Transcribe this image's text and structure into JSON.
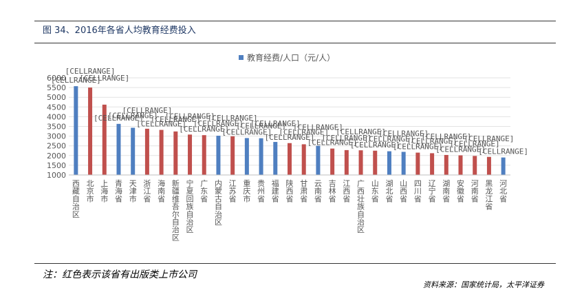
{
  "figure": {
    "title": "图 34、2016年各省人均教育经费投入",
    "note": "注：红色表示该省有出版类上市公司",
    "source": "资料来源：国家统计局，太平洋证券"
  },
  "chart_data": {
    "type": "bar",
    "title": "",
    "legend": {
      "label": "教育经费/人口（元/人）",
      "position": "top"
    },
    "ylim": [
      1000,
      6000
    ],
    "yticks": [
      1000,
      1500,
      2000,
      2500,
      3000,
      3500,
      4000,
      4500,
      5000,
      5500,
      6000
    ],
    "grid": true,
    "data_label_text": "[CELLRANGE]",
    "colors": {
      "default": "#4f7fc0",
      "highlight": "#c0504d"
    },
    "categories": [
      "西藏自治区",
      "北京市",
      "上海市",
      "青海省",
      "天津市",
      "浙江省",
      "海南省",
      "新疆维吾尔自治区",
      "宁夏回族自治区",
      "广东省",
      "内蒙古自治区",
      "江苏省",
      "重庆市",
      "贵州省",
      "福建省",
      "陕西省",
      "甘肃省",
      "云南省",
      "吉林省",
      "江西省",
      "广西壮族自治区",
      "山东省",
      "湖北省",
      "山西省",
      "四川省",
      "辽宁省",
      "湖南省",
      "安徽省",
      "河南省",
      "黑龙江省",
      "河北省"
    ],
    "values": [
      5570,
      5500,
      4620,
      3630,
      3430,
      3380,
      3320,
      3240,
      3080,
      3050,
      3020,
      2990,
      2900,
      2890,
      2700,
      2640,
      2580,
      2500,
      2360,
      2280,
      2270,
      2250,
      2220,
      2190,
      2150,
      2120,
      2030,
      2010,
      1980,
      1930,
      1900
    ],
    "highlight": [
      false,
      true,
      true,
      false,
      false,
      true,
      true,
      true,
      true,
      true,
      false,
      true,
      false,
      false,
      false,
      true,
      true,
      false,
      true,
      true,
      true,
      true,
      false,
      false,
      true,
      true,
      true,
      true,
      true,
      true,
      false
    ]
  }
}
